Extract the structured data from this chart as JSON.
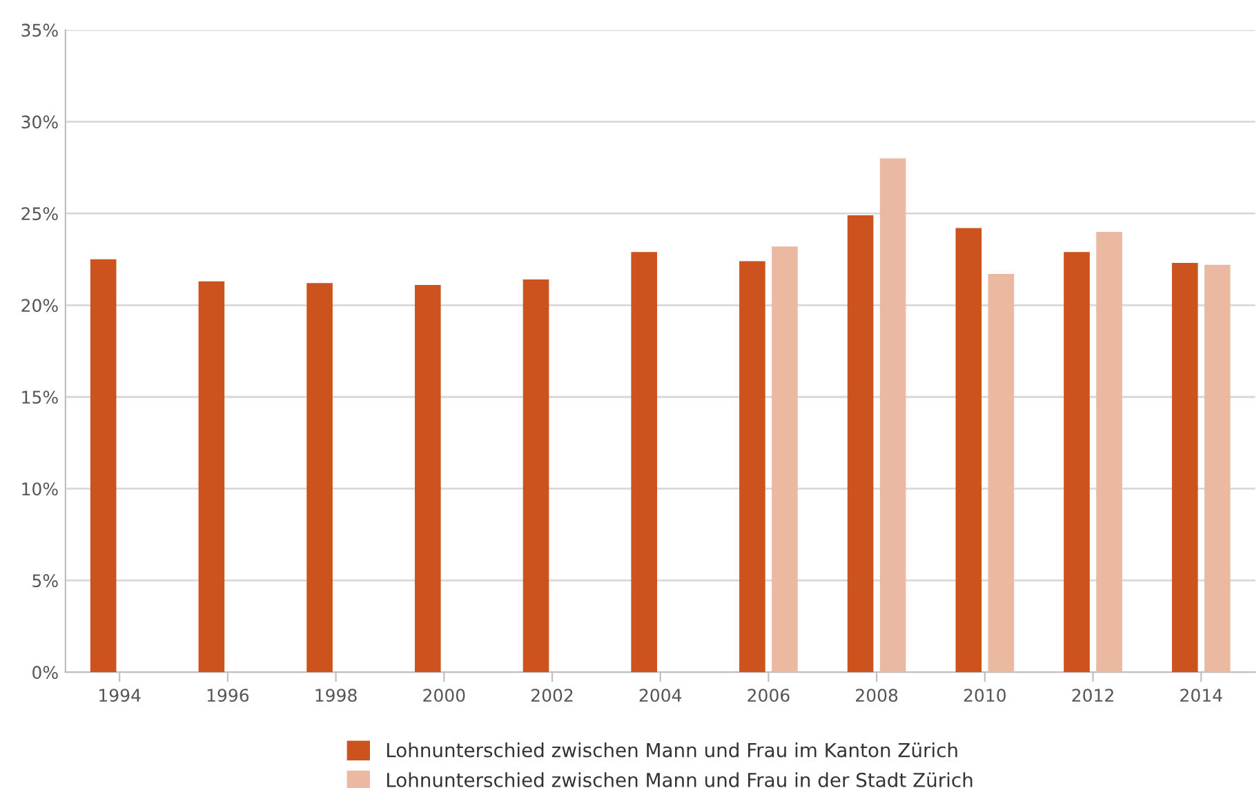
{
  "chart_data": {
    "type": "bar",
    "categories": [
      "1994",
      "1996",
      "1998",
      "2000",
      "2002",
      "2004",
      "2006",
      "2008",
      "2010",
      "2012",
      "2014"
    ],
    "series": [
      {
        "name": "Lohnunterschied zwischen Mann und Frau im Kanton Zürich",
        "color": "#cc521e",
        "values": [
          22.5,
          21.3,
          21.2,
          21.1,
          21.4,
          22.9,
          22.4,
          24.9,
          24.2,
          22.9,
          22.3
        ]
      },
      {
        "name": "Lohnunterschied zwischen Mann und Frau in der Stadt Zürich",
        "color": "#ebb8a1",
        "values": [
          null,
          null,
          null,
          null,
          null,
          null,
          23.2,
          28.0,
          21.7,
          24.0,
          22.2
        ]
      }
    ],
    "ylim": [
      0,
      35
    ],
    "yticks": [
      {
        "value": 0,
        "label": "0%"
      },
      {
        "value": 5,
        "label": "5%"
      },
      {
        "value": 10,
        "label": "10%"
      },
      {
        "value": 15,
        "label": "15%"
      },
      {
        "value": 20,
        "label": "20%"
      },
      {
        "value": 25,
        "label": "25%"
      },
      {
        "value": 30,
        "label": "30%"
      },
      {
        "value": 35,
        "label": "35%"
      }
    ],
    "grid": "y",
    "legend": "bottom"
  }
}
